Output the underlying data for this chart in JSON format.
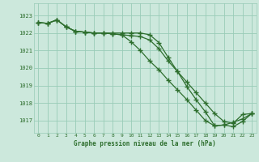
{
  "title": "Graphe pression niveau de la mer (hPa)",
  "bg_color": "#cce8dc",
  "grid_color": "#99ccb8",
  "line_color": "#2d6e2d",
  "marker_color": "#2d6e2d",
  "xlim": [
    -0.5,
    23.5
  ],
  "ylim": [
    1016.3,
    1023.7
  ],
  "yticks": [
    1017,
    1018,
    1019,
    1020,
    1021,
    1022,
    1023
  ],
  "xticks": [
    0,
    1,
    2,
    3,
    4,
    5,
    6,
    7,
    8,
    9,
    10,
    11,
    12,
    13,
    14,
    15,
    16,
    17,
    18,
    19,
    20,
    21,
    22,
    23
  ],
  "series1": [
    1022.6,
    1022.55,
    1022.75,
    1022.35,
    1022.1,
    1022.05,
    1022.0,
    1022.0,
    1021.95,
    1021.9,
    1021.85,
    1021.8,
    1021.6,
    1021.1,
    1020.4,
    1019.8,
    1019.2,
    1018.6,
    1018.0,
    1017.4,
    1016.95,
    1016.85,
    1017.35,
    1017.4
  ],
  "series2": [
    1022.6,
    1022.55,
    1022.75,
    1022.35,
    1022.1,
    1022.05,
    1022.0,
    1022.0,
    1021.95,
    1021.9,
    1021.5,
    1021.0,
    1020.4,
    1019.9,
    1019.3,
    1018.75,
    1018.2,
    1017.6,
    1017.0,
    1016.7,
    1016.75,
    1016.9,
    1017.1,
    1017.4
  ],
  "series3": [
    1022.6,
    1022.55,
    1022.75,
    1022.35,
    1022.1,
    1022.05,
    1022.0,
    1022.0,
    1022.0,
    1022.0,
    1022.0,
    1022.0,
    1021.9,
    1021.45,
    1020.6,
    1019.8,
    1018.95,
    1018.2,
    1017.5,
    1016.7,
    1016.75,
    1016.65,
    1016.95,
    1017.4
  ]
}
